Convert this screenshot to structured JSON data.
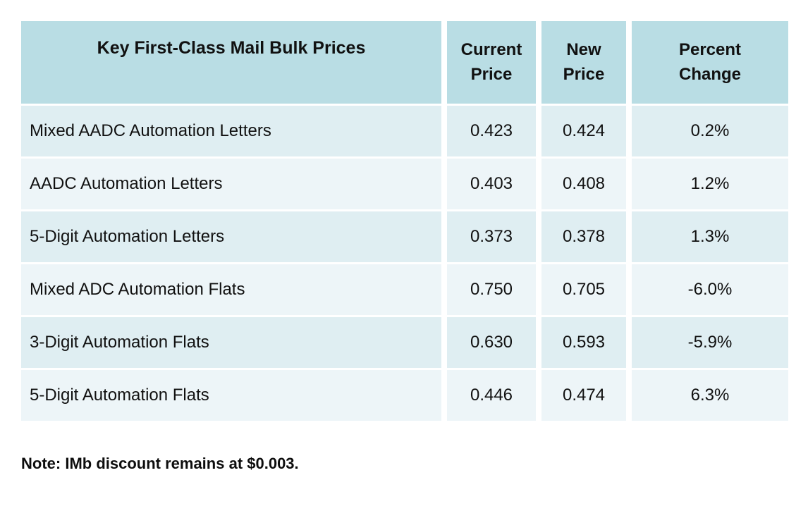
{
  "chart_data": {
    "type": "table",
    "title": "Key First-Class Mail Bulk Prices",
    "columns": [
      "Current\nPrice",
      "New\nPrice",
      "Percent\nChange"
    ],
    "rows": [
      {
        "label": "Mixed AADC Automation Letters",
        "current_price": "0.423",
        "new_price": "0.424",
        "percent_change": "0.2%"
      },
      {
        "label": "AADC Automation Letters",
        "current_price": "0.403",
        "new_price": "0.408",
        "percent_change": "1.2%"
      },
      {
        "label": "5-Digit Automation Letters",
        "current_price": "0.373",
        "new_price": "0.378",
        "percent_change": "1.3%"
      },
      {
        "label": "Mixed ADC Automation Flats",
        "current_price": "0.750",
        "new_price": "0.705",
        "percent_change": "-6.0%"
      },
      {
        "label": "3-Digit Automation Flats",
        "current_price": "0.630",
        "new_price": "0.593",
        "percent_change": "-5.9%"
      },
      {
        "label": "5-Digit Automation Flats",
        "current_price": "0.446",
        "new_price": "0.474",
        "percent_change": "6.3%"
      }
    ],
    "note": "Note: IMb discount remains at $0.003.",
    "colors": {
      "header_bg": "#b9dde4",
      "row_odd_bg": "#dfeef2",
      "row_even_bg": "#edf5f8",
      "text": "#111111",
      "grid_gap": "#ffffff"
    },
    "layout": {
      "grid": "white gaps between cells",
      "banded_rows": true
    }
  }
}
